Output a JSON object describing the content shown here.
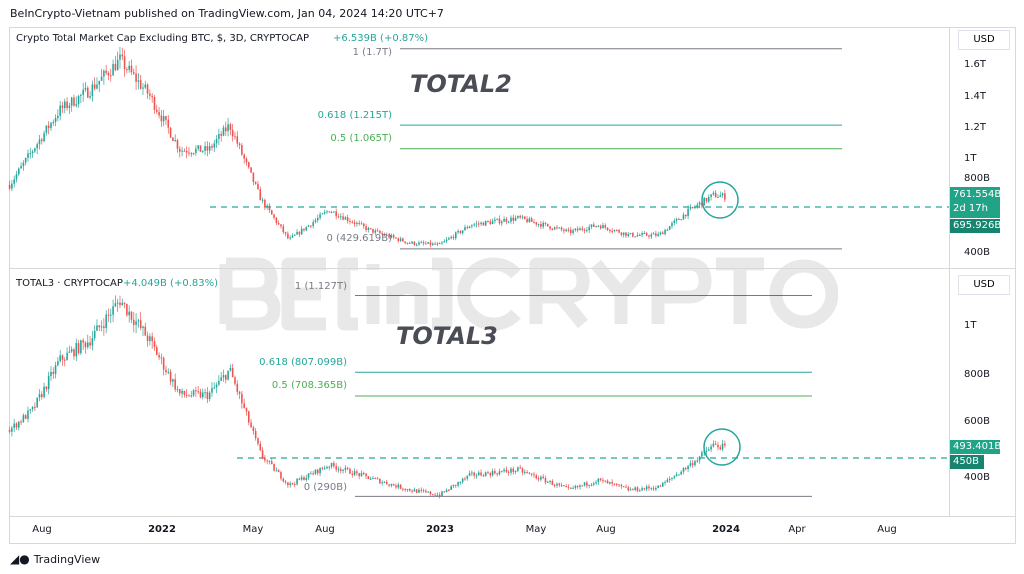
{
  "header": {
    "published": "BeInCrypto-Vietnam published on TradingView.com, Jan 04, 2024 14:20 UTC+7"
  },
  "watermark": "BE[in]CRYPTO",
  "footer": {
    "brand": "TradingView"
  },
  "colors": {
    "up": "#26a69a",
    "down": "#ef5350",
    "fib618": "#26a69a",
    "fib05": "#4caf50",
    "fibgray": "#787b86",
    "tag": "#20a387"
  },
  "xaxis": [
    "Aug",
    "2022",
    "May",
    "Aug",
    "2023",
    "May",
    "Aug",
    "2024",
    "Apr",
    "Aug"
  ],
  "panes": [
    {
      "title": "Crypto Total Market Cap Excluding BTC, $, 3D, CRYPTOCAP",
      "change": "+6.539B (+0.87%)",
      "label": "TOTAL2",
      "currency": "USD",
      "price_ticks": [
        "1.6T",
        "1.4T",
        "1.2T",
        "1T",
        "800B",
        "400B"
      ],
      "fib": [
        {
          "label": "1 (1.7T)"
        },
        {
          "label": "0.618 (1.215T)"
        },
        {
          "label": "0.5 (1.065T)"
        },
        {
          "label": "0 (429.619B)"
        }
      ],
      "tags": {
        "price": "761.554B",
        "countdown": "2d 17h",
        "level": "695.926B"
      }
    },
    {
      "title": "TOTAL3 · CRYPTOCAP",
      "change": "+4.049B (+0.83%)",
      "label": "TOTAL3",
      "currency": "USD",
      "price_ticks": [
        "1T",
        "800B",
        "600B",
        "400B"
      ],
      "fib": [
        {
          "label": "1 (1.127T)"
        },
        {
          "label": "0.618 (807.099B)"
        },
        {
          "label": "0.5 (708.365B)"
        },
        {
          "label": "0 (290B)"
        }
      ],
      "tags": {
        "price": "493.401B",
        "level": "450B"
      }
    }
  ],
  "chart_data": [
    {
      "type": "candlestick",
      "name": "TOTAL2",
      "unit": "B USD",
      "timeframe": "3D",
      "series": [
        [
          "2021-06-20",
          835
        ],
        [
          "2021-07-20",
          1057
        ],
        [
          "2021-08-24",
          1311
        ],
        [
          "2021-10-02",
          1438
        ],
        [
          "2021-11-10",
          1628
        ],
        [
          "2021-12-18",
          1406
        ],
        [
          "2022-01-27",
          1057
        ],
        [
          "2022-03-05",
          1057
        ],
        [
          "2022-04-01",
          1216
        ],
        [
          "2022-05-12",
          740
        ],
        [
          "2022-06-17",
          486
        ],
        [
          "2022-08-08",
          676
        ],
        [
          "2022-09-29",
          549
        ],
        [
          "2022-11-20",
          467
        ],
        [
          "2022-12-29",
          454
        ],
        [
          "2023-02-07",
          581
        ],
        [
          "2023-04-10",
          625
        ],
        [
          "2023-06-15",
          536
        ],
        [
          "2023-07-22",
          581
        ],
        [
          "2023-09-01",
          517
        ],
        [
          "2023-10-09",
          517
        ],
        [
          "2023-11-18",
          676
        ],
        [
          "2023-12-19",
          771
        ],
        [
          "2024-01-04",
          762
        ]
      ],
      "fib_levels": {
        "1": 1700,
        "0.618": 1215,
        "0.5": 1065,
        "0": 429.619
      },
      "support": 695.926,
      "ylim": [
        300,
        1750
      ]
    },
    {
      "type": "candlestick",
      "name": "TOTAL3",
      "unit": "B USD",
      "timeframe": "3D",
      "series": [
        [
          "2021-06-20",
          567
        ],
        [
          "2021-07-20",
          650
        ],
        [
          "2021-08-24",
          858
        ],
        [
          "2021-10-02",
          942
        ],
        [
          "2021-11-10",
          1108
        ],
        [
          "2021-12-18",
          942
        ],
        [
          "2022-01-27",
          713
        ],
        [
          "2022-03-05",
          713
        ],
        [
          "2022-04-01",
          817
        ],
        [
          "2022-05-12",
          462
        ],
        [
          "2022-06-17",
          337
        ],
        [
          "2022-08-08",
          421
        ],
        [
          "2022-09-29",
          367
        ],
        [
          "2022-11-20",
          317
        ],
        [
          "2022-12-29",
          296
        ],
        [
          "2023-02-07",
          379
        ],
        [
          "2023-04-10",
          400
        ],
        [
          "2023-06-15",
          317
        ],
        [
          "2023-07-22",
          358
        ],
        [
          "2023-09-01",
          317
        ],
        [
          "2023-10-09",
          329
        ],
        [
          "2023-11-18",
          421
        ],
        [
          "2023-12-19",
          504
        ],
        [
          "2024-01-04",
          493
        ]
      ],
      "fib_levels": {
        "1": 1127,
        "0.618": 807.099,
        "0.5": 708.365,
        "0": 290
      },
      "support": 450,
      "ylim": [
        200,
        1150
      ]
    }
  ]
}
